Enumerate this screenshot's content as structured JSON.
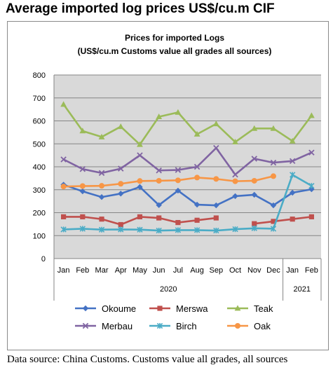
{
  "page": {
    "heading": "Average imported log prices US$/cu.m CIF",
    "source": "Data source: China Customs. Customs value all grades, all sources"
  },
  "chart_data": {
    "type": "line",
    "title": "Prices for imported Logs",
    "subtitle": "(US$/cu.m Customs value all grades all sources)",
    "categories": [
      "Jan",
      "Feb",
      "Mar",
      "Apr",
      "May",
      "Jun",
      "Jul",
      "Aug",
      "Sep",
      "Oct",
      "Nov",
      "Dec",
      "Jan",
      "Feb"
    ],
    "year_groups": [
      {
        "label": "2020",
        "start": 0,
        "end": 11
      },
      {
        "label": "2021",
        "start": 12,
        "end": 13
      }
    ],
    "ylim": [
      0,
      800
    ],
    "yticks": [
      0,
      100,
      200,
      300,
      400,
      500,
      600,
      700,
      800
    ],
    "grid": true,
    "legend_position": "bottom",
    "series": [
      {
        "name": "Okoume",
        "color": "#4472c4",
        "marker": "diamond",
        "values": [
          322,
          293,
          268,
          283,
          312,
          233,
          296,
          235,
          232,
          272,
          278,
          232,
          287,
          302
        ]
      },
      {
        "name": "Merswa",
        "color": "#c0504d",
        "marker": "square",
        "values": [
          182,
          182,
          172,
          148,
          182,
          177,
          157,
          167,
          177,
          null,
          152,
          162,
          172,
          182
        ]
      },
      {
        "name": "Teak",
        "color": "#9bbb59",
        "marker": "triangle",
        "values": [
          672,
          556,
          530,
          575,
          497,
          618,
          637,
          542,
          587,
          508,
          567,
          567,
          512,
          623
        ]
      },
      {
        "name": "Merbau",
        "color": "#8064a2",
        "marker": "x",
        "values": [
          432,
          390,
          373,
          392,
          450,
          384,
          386,
          400,
          482,
          366,
          435,
          418,
          425,
          462
        ]
      },
      {
        "name": "Birch",
        "color": "#4bacc6",
        "marker": "star",
        "values": [
          127,
          130,
          126,
          127,
          126,
          122,
          124,
          124,
          122,
          128,
          132,
          130,
          365,
          317
        ]
      },
      {
        "name": "Oak",
        "color": "#f79646",
        "marker": "circle",
        "values": [
          314,
          316,
          317,
          326,
          338,
          339,
          341,
          353,
          347,
          337,
          339,
          359,
          null,
          null
        ]
      }
    ]
  }
}
